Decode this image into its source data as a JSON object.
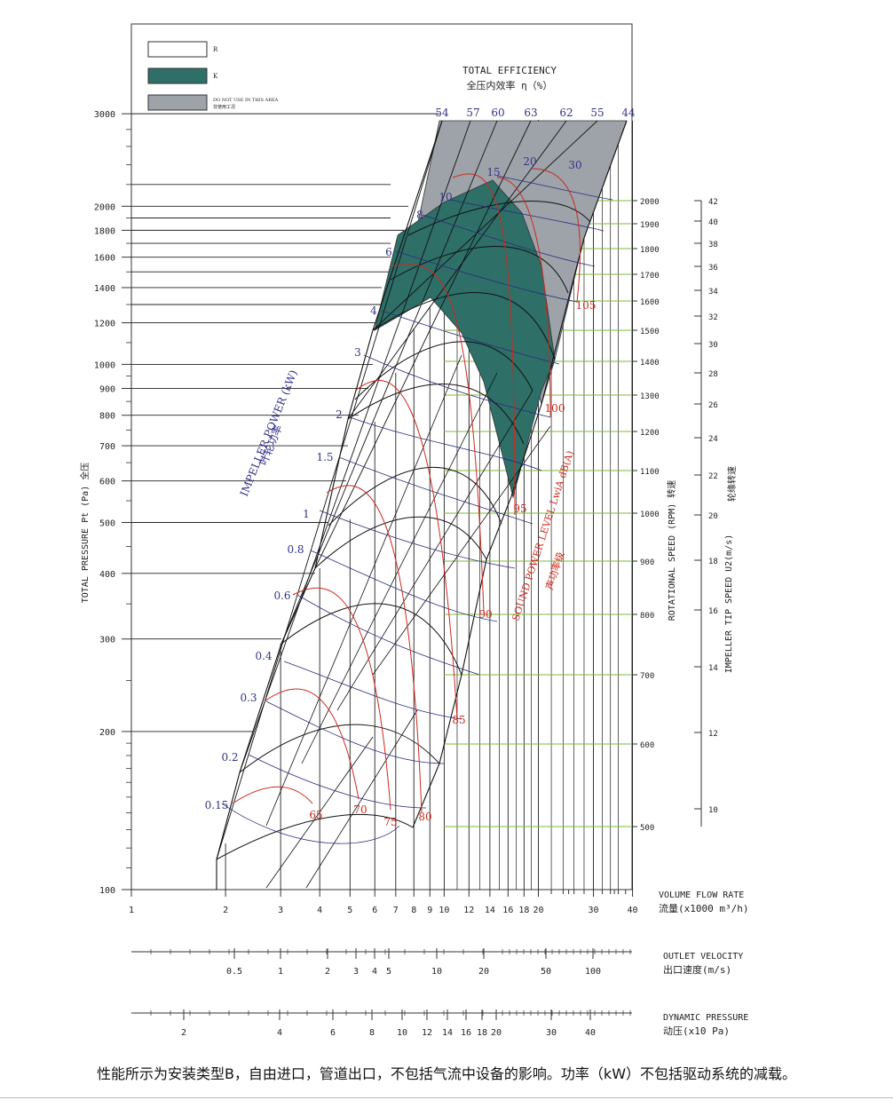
{
  "chart_data": {
    "type": "fan-performance-chart",
    "scale": "log-log",
    "legend": [
      {
        "code": "R",
        "text": "R",
        "color": "#ffffff"
      },
      {
        "code": "K",
        "text": "K",
        "color": "#2e6f68"
      },
      {
        "code": "X",
        "text": "DO NOT USE IN THIS AREA",
        "text_cn": "非使用工况",
        "color": "#9ea3aa"
      }
    ],
    "efficiency_title": "TOTAL EFFICIENCY",
    "efficiency_title_cn": "全压内效率  η（%）",
    "efficiency_values": [
      "54",
      "57",
      "60",
      "63",
      "62",
      "55",
      "44"
    ],
    "y_axis": {
      "label": "TOTAL PRESSURE Pt (Pa)  全压",
      "unit": "Pa",
      "ticks": [
        "100",
        "200",
        "300",
        "400",
        "500",
        "600",
        "700",
        "800",
        "900",
        "1000",
        "1200",
        "1400",
        "1600",
        "1800",
        "2000",
        "3000"
      ],
      "range": [
        100,
        3000
      ]
    },
    "x_axis": {
      "label": "VOLUME FLOW RATE",
      "label_cn": "流量(x1000 m³/h)",
      "ticks": [
        "1",
        "2",
        "3",
        "4",
        "5",
        "6",
        "7",
        "8",
        "9",
        "10",
        "12",
        "14",
        "16",
        "18",
        "20",
        "30",
        "40"
      ],
      "range": [
        1,
        40
      ]
    },
    "velocity_axis": {
      "label": "OUTLET VELOCITY",
      "label_cn": "出口速度(m/s)",
      "ticks": [
        "0.5",
        "1",
        "2",
        "3",
        "4",
        "5",
        "10",
        "20",
        "50",
        "100"
      ]
    },
    "dynamic_pressure_axis": {
      "label": "DYNAMIC PRESSURE",
      "label_cn": "动压(x10 Pa)",
      "ticks": [
        "2",
        "4",
        "6",
        "8",
        "10",
        "12",
        "14",
        "16",
        "18",
        "20",
        "30",
        "40"
      ]
    },
    "speed_axis": {
      "label": "ROTATIONAL SPEED (RPM)  转速",
      "ticks": [
        "500",
        "600",
        "700",
        "800",
        "900",
        "1000",
        "1100",
        "1200",
        "1300",
        "1400",
        "1500",
        "1600",
        "1700",
        "1800",
        "1900",
        "2000"
      ]
    },
    "tip_speed_axis": {
      "label": "IMPELLER TIP SPEED U2(m/s)",
      "label_cn": "轮缘转速",
      "ticks": [
        "10",
        "12",
        "14",
        "16",
        "18",
        "20",
        "22",
        "24",
        "26",
        "28",
        "30",
        "32",
        "34",
        "36",
        "38",
        "40",
        "42"
      ]
    },
    "power_title": "IMPELLER POWER (kW)",
    "power_title_cn": "叶轮功率",
    "power_labels": [
      "0.15",
      "0.2",
      "0.3",
      "0.4",
      "0.6",
      "0.8",
      "1",
      "1.5",
      "2",
      "3",
      "4",
      "6",
      "8",
      "10",
      "15",
      "20",
      "30"
    ],
    "sound_title": "SOUND POWER LEVEL LwiA dB(A)",
    "sound_title_cn": "声功率级",
    "sound_labels": [
      "65",
      "70",
      "75",
      "80",
      "85",
      "90",
      "95",
      "100",
      "105"
    ]
  },
  "caption": "性能所示为安装类型B，自由进口，管道出口，不包括气流中设备的影响。功率（kW）不包括驱动系统的减载。"
}
